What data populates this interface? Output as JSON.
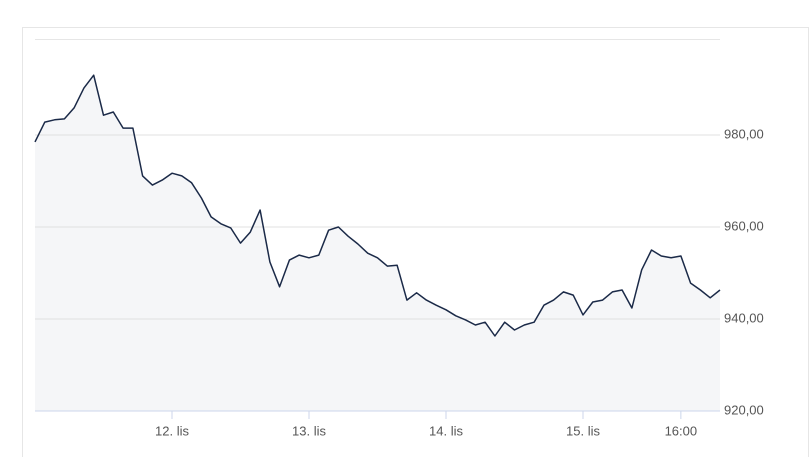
{
  "chart_data": {
    "type": "line",
    "series": [
      {
        "color": "#1b2a48",
        "fill": "#f5f6f8",
        "values": [
          978.5,
          982.8,
          983.3,
          983.5,
          985.9,
          990.2,
          993.0,
          984.3,
          985.0,
          981.5,
          981.5,
          971.1,
          969.1,
          970.2,
          971.7,
          971.1,
          969.6,
          966.3,
          962.2,
          960.7,
          959.8,
          956.5,
          958.9,
          963.7,
          952.4,
          947.0,
          952.8,
          953.9,
          953.3,
          953.9,
          959.3,
          960.0,
          958.0,
          956.3,
          954.3,
          953.3,
          951.5,
          951.7,
          944.1,
          945.7,
          944.1,
          943.0,
          942.0,
          940.7,
          939.8,
          938.7,
          939.3,
          936.3,
          939.3,
          937.6,
          938.7,
          939.3,
          943.0,
          944.1,
          945.9,
          945.2,
          940.9,
          943.7,
          944.1,
          945.9,
          946.3,
          942.4,
          950.7,
          955.0,
          953.7,
          953.3,
          953.7,
          947.8,
          946.3,
          944.6,
          946.3
        ]
      }
    ],
    "xlim": [
      0,
      70
    ],
    "xticks": [
      {
        "value": 14,
        "label": "12. lis"
      },
      {
        "value": 28,
        "label": "13. lis"
      },
      {
        "value": 42,
        "label": "14. lis"
      },
      {
        "value": 56,
        "label": "15. lis"
      },
      {
        "value": 66,
        "label": "16:00"
      }
    ],
    "ylim": [
      920,
      1000
    ],
    "yticks": [
      {
        "value": 920,
        "label": "920,00"
      },
      {
        "value": 940,
        "label": "940,00"
      },
      {
        "value": 960,
        "label": "960,00"
      },
      {
        "value": 980,
        "label": "980,00"
      }
    ],
    "grid": true
  }
}
